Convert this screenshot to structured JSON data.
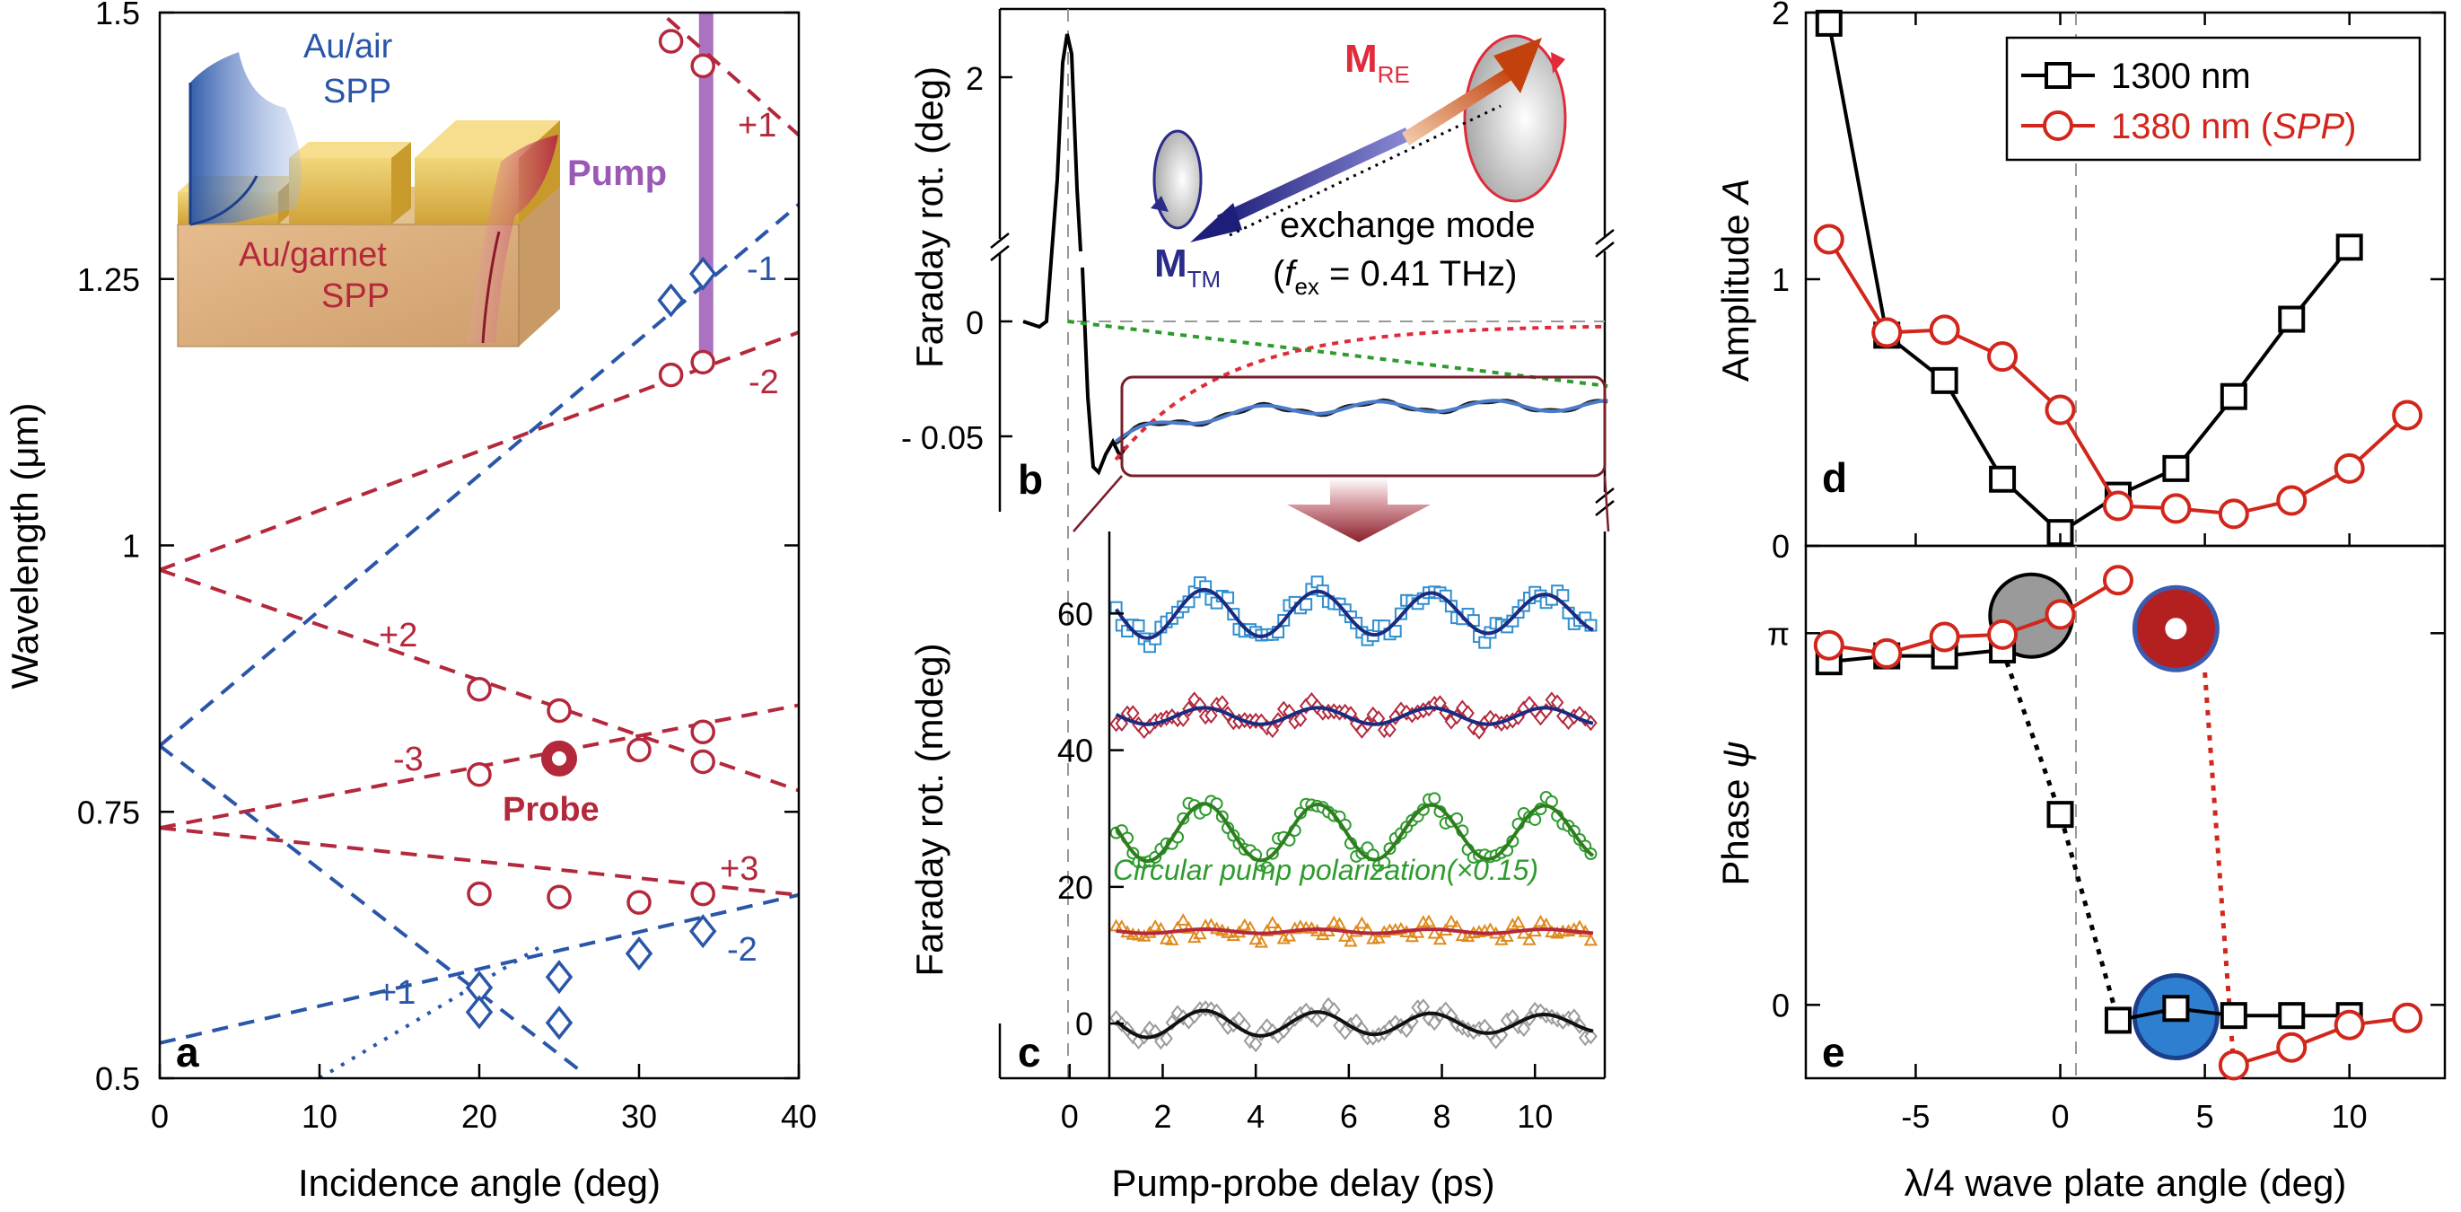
{
  "colors": {
    "red": "#b4283c",
    "blue": "#2a56a8",
    "purple": "#9b59b6",
    "navy": "#2b2b8a",
    "green": "#2e9b2e",
    "lightblue": "#2f8fd0",
    "orange": "#e08a1e",
    "gray": "#9a9a9a",
    "marker_red": "#d1261b",
    "gold": "#e4bd48",
    "garnet": "#d8a877"
  },
  "chart_data": [
    {
      "panel": "a",
      "type": "scatter",
      "xlabel": "Incidence angle (deg)",
      "ylabel": "Wavelength (μm)",
      "xlim": [
        0,
        40
      ],
      "ylim": [
        0.5,
        1.5
      ],
      "xticks": [
        "0",
        "10",
        "20",
        "30",
        "40"
      ],
      "yticks": [
        "0.5",
        "0.75",
        "1",
        "1.25",
        "1.5"
      ],
      "panel_label": "a",
      "inset_labels": {
        "air": [
          "Au/air",
          "SPP"
        ],
        "garnet": [
          "Au/garnet",
          "SPP"
        ],
        "pump": "Pump",
        "probe": "Probe"
      },
      "line_labels": [
        "+1",
        "-1",
        "-2",
        "+2",
        "-3",
        "+3",
        "-2",
        "+1"
      ],
      "red_lines": [
        {
          "x": [
            0,
            40
          ],
          "y": [
            0.977,
            1.2
          ]
        },
        {
          "x": [
            0,
            40
          ],
          "y": [
            0.977,
            0.77
          ]
        },
        {
          "x": [
            0,
            40
          ],
          "y": [
            0.735,
            0.85
          ]
        },
        {
          "x": [
            0,
            40
          ],
          "y": [
            0.735,
            0.672
          ]
        },
        {
          "x": [
            28,
            40
          ],
          "y": [
            1.545,
            1.385
          ]
        }
      ],
      "blue_lines": [
        {
          "x": [
            0,
            40
          ],
          "y": [
            0.812,
            1.32
          ]
        },
        {
          "x": [
            0,
            40
          ],
          "y": [
            0.533,
            0.672
          ]
        },
        {
          "x": [
            0,
            26.5
          ],
          "y": [
            0.812,
            0.505
          ]
        },
        {
          "x": [
            10,
            24
          ],
          "y": [
            0.5,
            0.625
          ],
          "dotted": true
        }
      ],
      "red_points": [
        {
          "x": 32,
          "y": 1.473
        },
        {
          "x": 34,
          "y": 1.45
        },
        {
          "x": 32,
          "y": 1.16
        },
        {
          "x": 34,
          "y": 1.172
        },
        {
          "x": 20,
          "y": 0.865
        },
        {
          "x": 25,
          "y": 0.845
        },
        {
          "x": 34,
          "y": 0.825
        },
        {
          "x": 20,
          "y": 0.785
        },
        {
          "x": 30,
          "y": 0.808
        },
        {
          "x": 34,
          "y": 0.797
        },
        {
          "x": 20,
          "y": 0.673
        },
        {
          "x": 25,
          "y": 0.67
        },
        {
          "x": 30,
          "y": 0.665
        },
        {
          "x": 34,
          "y": 0.673
        }
      ],
      "blue_points": [
        {
          "x": 32,
          "y": 1.23
        },
        {
          "x": 34,
          "y": 1.255
        },
        {
          "x": 30,
          "y": 0.617
        },
        {
          "x": 34,
          "y": 0.638
        },
        {
          "x": 20,
          "y": 0.585
        },
        {
          "x": 20,
          "y": 0.562
        },
        {
          "x": 25,
          "y": 0.595
        },
        {
          "x": 25,
          "y": 0.552
        }
      ],
      "probe_point": {
        "x": 25,
        "y": 0.8
      },
      "pump_band": {
        "x": 34.2,
        "y": [
          1.17,
          1.5
        ]
      }
    },
    {
      "panel": "b",
      "type": "line",
      "ylabel": "Faraday rot. (deg)",
      "yticks_top": [
        "2"
      ],
      "yticks_bottom": [
        "0",
        "- 0.05"
      ],
      "panel_label": "b",
      "labels": {
        "mre_main": "M",
        "mre_sub": "RE",
        "mtm_main": "M",
        "mtm_sub": "TM",
        "mode": "exchange mode",
        "freq_open": "(",
        "freq_f": "f",
        "freq_sub": "ex",
        "freq_rest": " = 0.41 THz)"
      }
    },
    {
      "panel": "c",
      "type": "line",
      "xlabel": "Pump-probe delay (ps)",
      "ylabel": "Faraday rot. (mdeg)",
      "xlim": [
        -1.5,
        11.5
      ],
      "ylim": [
        -8,
        72
      ],
      "xticks": [
        "0",
        "2",
        "4",
        "6",
        "8",
        "10"
      ],
      "yticks": [
        "0",
        "20",
        "40",
        "60"
      ],
      "panel_label": "c",
      "annotation": "Circular pump polarization(×0.15)",
      "series": [
        {
          "offset": 60,
          "amplitude": 3.8,
          "decay": 0.03,
          "color_key": "lightblue",
          "marker": "square"
        },
        {
          "offset": 45,
          "amplitude": 1.2,
          "decay": 0.0,
          "color_key": "red",
          "marker": "diamond"
        },
        {
          "offset": 28,
          "amplitude": 4.3,
          "decay": 0.01,
          "color_key": "green",
          "marker": "circle"
        },
        {
          "offset": 13.5,
          "amplitude": 0.3,
          "decay": 0.0,
          "color_key": "orange",
          "marker": "triangle"
        },
        {
          "offset": 0,
          "amplitude": 2.2,
          "decay": 0.05,
          "color_key": "gray",
          "marker": "diamond"
        }
      ]
    },
    {
      "panel": "d",
      "type": "line",
      "ylabel": "Amplitude A",
      "ylabel_main": "Amplitude ",
      "ylabel_italic": "A",
      "xlim": [
        -8.8,
        13.3
      ],
      "ylim": [
        0,
        2
      ],
      "yticks": [
        "0",
        "1",
        "2"
      ],
      "panel_label": "d",
      "legend": {
        "placement": "top-right",
        "entries": [
          "1300 nm",
          "1380 nm (SPP)"
        ],
        "entry2_main": "1380 nm (",
        "entry2_italic": "SPP",
        "entry2_close": ")"
      },
      "series": [
        {
          "name": "1300 nm",
          "x": [
            -8,
            -6,
            -4,
            -2,
            0,
            2,
            4,
            6,
            8,
            10
          ],
          "y": [
            1.96,
            0.79,
            0.62,
            0.25,
            0.05,
            0.19,
            0.29,
            0.56,
            0.85,
            1.12
          ]
        },
        {
          "name": "1380 nm (SPP)",
          "x": [
            -8,
            -6,
            -4,
            -2,
            0,
            2,
            4,
            6,
            8,
            10,
            12
          ],
          "y": [
            1.15,
            0.8,
            0.81,
            0.71,
            0.51,
            0.15,
            0.14,
            0.12,
            0.17,
            0.29,
            0.49
          ]
        }
      ]
    },
    {
      "panel": "e",
      "type": "line",
      "xlabel": "λ/4 wave plate angle (deg)",
      "ylabel": "Phase ψ",
      "ylabel_main": "Phase ",
      "ylabel_italic": "ψ",
      "xlim": [
        -8.8,
        13.3
      ],
      "ylim": [
        -0.62,
        3.88
      ],
      "xticks": [
        "-5",
        "0",
        "5",
        "10"
      ],
      "yticks": [
        "0",
        "π"
      ],
      "panel_label": "e",
      "series": [
        {
          "name": "1300 nm",
          "x": [
            -8,
            -6,
            -4,
            -2
          ],
          "y": [
            2.9,
            2.95,
            2.95,
            3.0
          ]
        },
        {
          "name": "1300 nm",
          "x": [
            2,
            4,
            6,
            8,
            10
          ],
          "y": [
            -0.13,
            -0.03,
            -0.09,
            -0.09,
            -0.09
          ]
        },
        {
          "name": "1380 nm (SPP)",
          "x": [
            -8,
            -6,
            -4,
            -2,
            0,
            2
          ],
          "y": [
            3.04,
            2.97,
            3.11,
            3.13,
            3.3,
            3.59
          ]
        },
        {
          "name": "1380 nm (SPP)",
          "x": [
            6,
            8,
            10,
            12
          ],
          "y": [
            -0.51,
            -0.36,
            -0.17,
            -0.11
          ]
        }
      ],
      "dashed_segments": [
        {
          "x": [
            -2,
            0,
            2
          ],
          "y": [
            3.0,
            1.61,
            -0.13
          ],
          "color_key": "black"
        },
        {
          "x": [
            5.0,
            6
          ],
          "y": [
            2.81,
            -0.51
          ],
          "color_key": "marker_red"
        }
      ],
      "isolated_point": {
        "x": 0,
        "y": 1.61
      },
      "state_icons": [
        {
          "x": -1.0,
          "y": 3.29,
          "kind": "gray"
        },
        {
          "x": 4.0,
          "y": 3.18,
          "kind": "red"
        },
        {
          "x": 4.0,
          "y": -0.1,
          "kind": "blue"
        }
      ]
    }
  ]
}
